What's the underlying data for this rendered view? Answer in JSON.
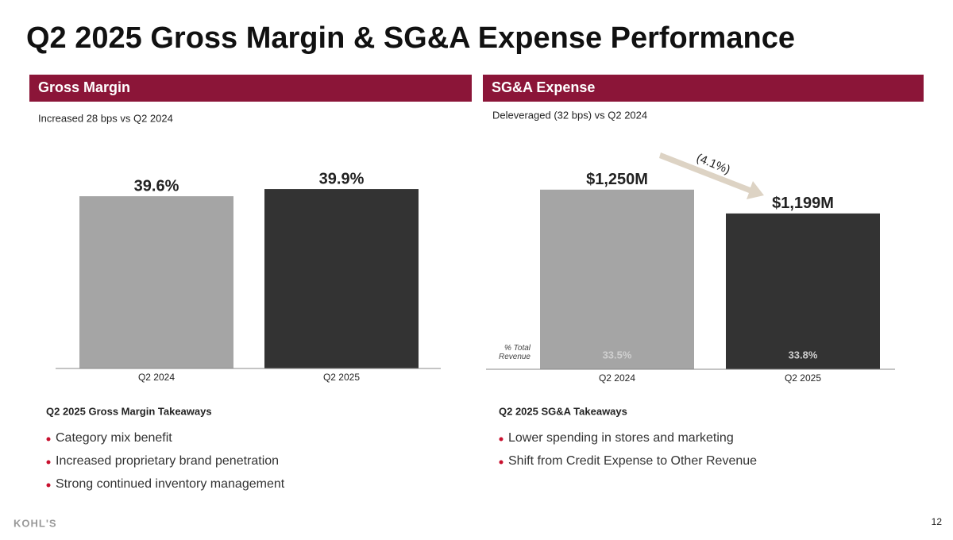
{
  "slide": {
    "title": "Q2 2025 Gross Margin & SG&A Expense Performance",
    "logo": "KOHL'S",
    "page_number": "12"
  },
  "chart_data": [
    {
      "type": "bar",
      "header": "Gross Margin",
      "subtitle": "Increased 28 bps vs Q2 2024",
      "categories": [
        "Q2 2024",
        "Q2 2025"
      ],
      "values": [
        39.6,
        39.9
      ],
      "value_labels": [
        "39.6%",
        "39.9%"
      ],
      "colors": [
        "#a5a5a5",
        "#333333"
      ],
      "ylim": [
        32.4,
        40.5
      ],
      "takeaways_title": "Q2 2025 Gross Margin Takeaways",
      "takeaways": [
        "Category mix benefit",
        "Increased proprietary brand penetration",
        "Strong continued inventory management"
      ]
    },
    {
      "type": "bar",
      "header": "SG&A Expense",
      "subtitle": "Deleveraged (32 bps) vs Q2 2024",
      "categories": [
        "Q2 2024",
        "Q2 2025"
      ],
      "values": [
        1250,
        1199
      ],
      "value_labels": [
        "$1,250M",
        "$1,199M"
      ],
      "colors": [
        "#a5a5a5",
        "#333333"
      ],
      "ylim": [
        865,
        1282
      ],
      "annotation": "(4.1%)",
      "secondary_title": "% Total Revenue",
      "secondary_labels": [
        "33.5%",
        "33.8%"
      ],
      "takeaways_title": "Q2 2025 SG&A Takeaways",
      "takeaways": [
        "Lower spending in stores and marketing",
        "Shift from Credit Expense to Other Revenue"
      ]
    }
  ]
}
